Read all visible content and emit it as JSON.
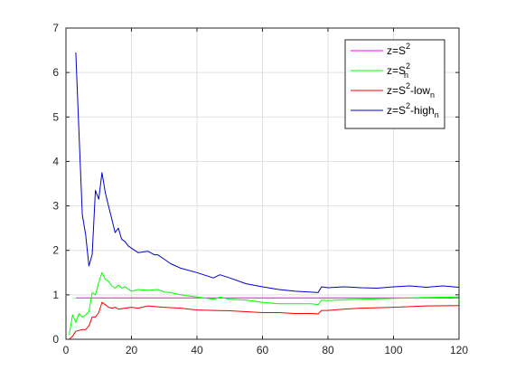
{
  "chart_data": {
    "type": "line",
    "title": "",
    "xlabel": "",
    "ylabel": "",
    "xlim": [
      0,
      120
    ],
    "ylim": [
      0,
      7
    ],
    "xticks": [
      "0",
      "20",
      "40",
      "60",
      "80",
      "100",
      "120"
    ],
    "yticks": [
      "0",
      "1",
      "2",
      "3",
      "4",
      "5",
      "6",
      "7"
    ],
    "grid": true,
    "legend_position": "top-right",
    "series": [
      {
        "name": "z=S^2",
        "legend_main": "z=S",
        "legend_sup": "2",
        "legend_sub": "",
        "legend_tail": "",
        "color": "#ff00ff",
        "x": [
          3,
          120
        ],
        "y": [
          0.93,
          0.93
        ]
      },
      {
        "name": "z=S_n^2",
        "legend_main": "z=S",
        "legend_sup": "2",
        "legend_sub": "n",
        "legend_tail": "",
        "color": "#00ff00",
        "x": [
          1,
          2,
          3,
          4,
          5,
          6,
          7,
          8,
          9,
          10,
          11,
          12,
          13,
          14,
          15,
          16,
          17,
          18,
          20,
          22,
          25,
          28,
          30,
          32,
          35,
          40,
          45,
          47,
          50,
          55,
          60,
          65,
          70,
          75,
          77,
          78,
          80,
          85,
          90,
          100,
          110,
          120
        ],
        "y": [
          0.1,
          0.55,
          0.38,
          0.58,
          0.5,
          0.55,
          0.62,
          1.05,
          1.0,
          1.28,
          1.5,
          1.35,
          1.3,
          1.2,
          1.15,
          1.22,
          1.15,
          1.18,
          1.08,
          1.12,
          1.1,
          1.12,
          1.06,
          1.05,
          1.0,
          0.95,
          0.9,
          0.95,
          0.9,
          0.88,
          0.83,
          0.8,
          0.8,
          0.8,
          0.78,
          0.88,
          0.87,
          0.89,
          0.9,
          0.92,
          0.94,
          0.95
        ]
      },
      {
        "name": "z=S^2-low_n",
        "legend_main": "z=S",
        "legend_sup": "2",
        "legend_sub": "n",
        "legend_tail": "-low",
        "color": "#ff0000",
        "x": [
          1,
          2,
          3,
          4,
          5,
          6,
          7,
          8,
          9,
          10,
          11,
          12,
          13,
          14,
          15,
          16,
          18,
          20,
          22,
          25,
          28,
          30,
          35,
          40,
          45,
          50,
          55,
          60,
          65,
          70,
          75,
          77,
          78,
          80,
          85,
          90,
          100,
          110,
          120
        ],
        "y": [
          0.0,
          0.07,
          0.18,
          0.2,
          0.22,
          0.22,
          0.3,
          0.5,
          0.5,
          0.6,
          0.83,
          0.78,
          0.72,
          0.7,
          0.72,
          0.68,
          0.7,
          0.72,
          0.7,
          0.75,
          0.73,
          0.72,
          0.7,
          0.66,
          0.65,
          0.64,
          0.62,
          0.6,
          0.6,
          0.58,
          0.58,
          0.57,
          0.65,
          0.65,
          0.68,
          0.7,
          0.72,
          0.75,
          0.76
        ]
      },
      {
        "name": "z=S^2-high_n",
        "legend_main": "z=S",
        "legend_sup": "2",
        "legend_sub": "n",
        "legend_tail": "-high",
        "color": "#0000cc",
        "x": [
          3,
          4,
          5,
          6,
          7,
          8,
          9,
          10,
          11,
          12,
          13,
          14,
          15,
          16,
          17,
          18,
          19,
          20,
          22,
          25,
          27,
          28,
          30,
          32,
          35,
          40,
          45,
          47,
          50,
          55,
          60,
          65,
          70,
          75,
          77,
          78,
          80,
          85,
          90,
          95,
          100,
          105,
          110,
          115,
          120
        ],
        "y": [
          6.45,
          4.6,
          2.8,
          2.35,
          1.65,
          1.9,
          3.35,
          3.15,
          3.75,
          3.3,
          3.0,
          2.7,
          2.4,
          2.5,
          2.25,
          2.2,
          2.1,
          2.05,
          1.95,
          1.98,
          1.9,
          1.9,
          1.8,
          1.7,
          1.6,
          1.5,
          1.38,
          1.45,
          1.38,
          1.25,
          1.18,
          1.12,
          1.08,
          1.06,
          1.05,
          1.18,
          1.16,
          1.18,
          1.16,
          1.15,
          1.18,
          1.2,
          1.17,
          1.2,
          1.17
        ]
      }
    ]
  }
}
